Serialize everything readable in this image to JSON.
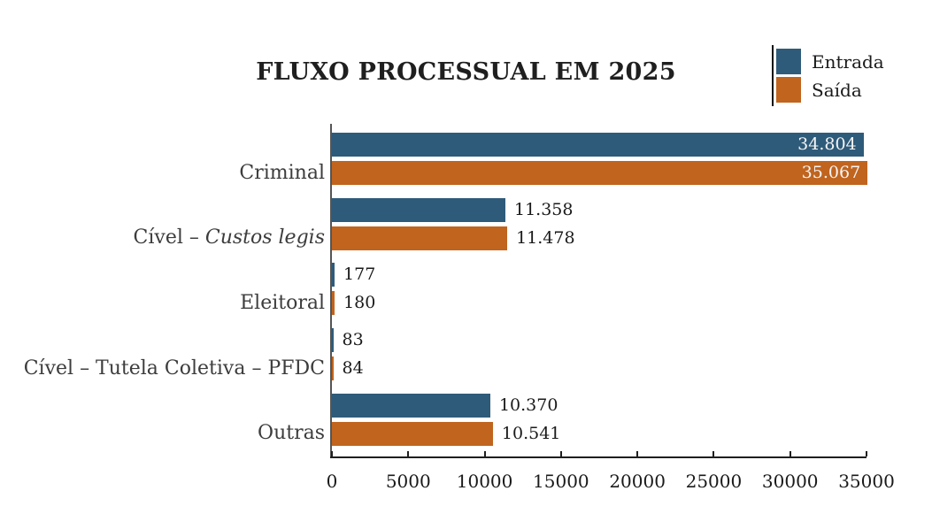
{
  "figure": {
    "title": "FLUXO PROCESSUAL EM 2025",
    "legend": {
      "items": [
        {
          "label": "Entrada",
          "color": "#2F5B7A"
        },
        {
          "label": "Saída",
          "color": "#C0641E"
        }
      ],
      "position": "top-right"
    },
    "colors": {
      "entrada": "#2F5B7A",
      "saida": "#C0641E",
      "x_axis_line": "#1f1f1f",
      "y_axis_line": "#555555",
      "category_text": "#3c3c3c",
      "value_text_inside": "#f5f5f5",
      "value_text_outside": "#1a1a1a"
    }
  },
  "chart_data": {
    "type": "bar",
    "orientation": "horizontal",
    "title": "FLUXO PROCESSUAL EM 2025",
    "categories": [
      "Criminal",
      "Cível – Custos legis",
      "Eleitoral",
      "Cível – Tutela Coletiva – PFDC",
      "Outras"
    ],
    "category_segments": [
      [
        {
          "text": "Criminal",
          "italic": false
        }
      ],
      [
        {
          "text": "Cível – ",
          "italic": false
        },
        {
          "text": "Custos legis",
          "italic": true
        }
      ],
      [
        {
          "text": "Eleitoral",
          "italic": false
        }
      ],
      [
        {
          "text": "Cível – Tutela Coletiva – PFDC",
          "italic": false
        }
      ],
      [
        {
          "text": "Outras",
          "italic": false
        }
      ]
    ],
    "series": [
      {
        "name": "Entrada",
        "color": "#2F5B7A",
        "values": [
          34804,
          11358,
          177,
          83,
          10370
        ],
        "labels": [
          "34.804",
          "11.358",
          "177",
          "83",
          "10.370"
        ]
      },
      {
        "name": "Saída",
        "color": "#C0641E",
        "values": [
          35067,
          11478,
          180,
          84,
          10541
        ],
        "labels": [
          "35.067",
          "11.478",
          "180",
          "84",
          "10.541"
        ]
      }
    ],
    "xlim": [
      0,
      35000
    ],
    "x_ticks": [
      0,
      5000,
      10000,
      15000,
      20000,
      25000,
      30000,
      35000
    ],
    "x_tick_labels": [
      "0",
      "5000",
      "10000",
      "15000",
      "20000",
      "25000",
      "30000",
      "35000"
    ],
    "grid": false,
    "legend_position": "top-right",
    "value_labels_shown": true
  }
}
